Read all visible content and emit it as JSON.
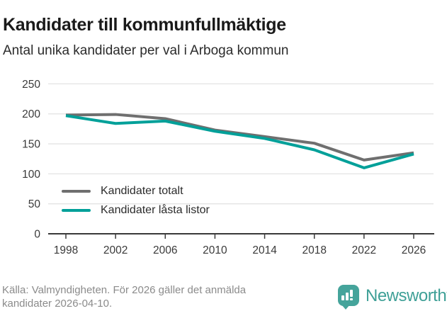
{
  "header": {
    "title": "Kandidater till kommunfullmäktige",
    "subtitle": "Antal unika kandidater per val i Arboga kommun"
  },
  "chart_data": {
    "type": "line",
    "x": [
      1998,
      2002,
      2006,
      2010,
      2014,
      2018,
      2022,
      2026
    ],
    "series": [
      {
        "name": "Kandidater totalt",
        "color": "#6f6f6f",
        "values": [
          198,
          199,
          192,
          173,
          162,
          151,
          123,
          135
        ]
      },
      {
        "name": "Kandidater låsta listor",
        "color": "#00a099",
        "values": [
          197,
          184,
          188,
          171,
          159,
          140,
          110,
          133
        ]
      }
    ],
    "ylim": [
      0,
      250
    ],
    "yticks": [
      0,
      50,
      100,
      150,
      200,
      250
    ],
    "xlabel": "",
    "ylabel": "",
    "grid": "horizontal",
    "legend_position": "inside-bottom-left"
  },
  "footer": {
    "source": "Källa: Valmyndigheten. För 2026 gäller det anmälda kandidater 2026-04-10.",
    "brand": "Newsworthy"
  },
  "colors": {
    "series_total": "#6f6f6f",
    "series_locked": "#00a099",
    "grid_line": "#e3e3e3",
    "axis_line": "#3a3a3a",
    "tick_label": "#3a3a3a",
    "source_text": "#8b8b8b",
    "logo_bubble": "#45a49b",
    "logo_text": "#3fa097"
  }
}
